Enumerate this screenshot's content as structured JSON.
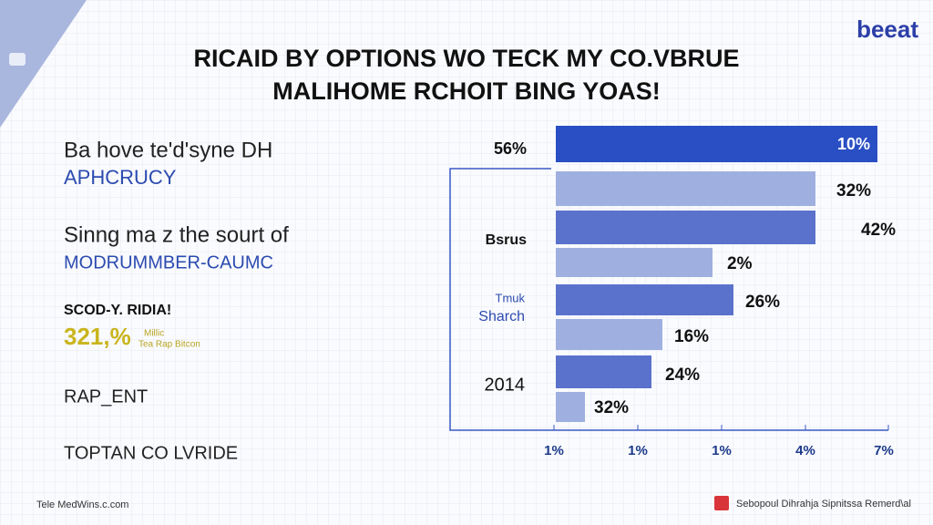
{
  "header": {
    "logo": "beeat",
    "title_lines": [
      "RICAID BY OPTIONS WO TECK MY CO.VBRUE",
      "MALIHOME RCHOIT BING YOAS!"
    ]
  },
  "left_panel": {
    "block1": {
      "line": "Ba hove te'd'syne DH",
      "highlight": "APHCRUCY"
    },
    "block2": {
      "line": "Sinng ma z the sourt of",
      "highlight": "MODRUMMBER-CAUMC"
    },
    "block3": {
      "heading": "SCOD-Y. RIDIA!",
      "stat": "321,%",
      "note_lines": [
        "Millic",
        "Tea Rap Bitcon"
      ]
    },
    "block4": "RAP_ENT",
    "block5": "TOPTAN CO LVRIDE"
  },
  "chart": {
    "row_labels": [
      "56%",
      "Bsrus",
      "Tmuk",
      "Sharch",
      "2014"
    ],
    "bar_labels": [
      "10%",
      "32%",
      "42%",
      "2%",
      "26%",
      "16%",
      "24%",
      "32%"
    ],
    "axis_labels": [
      "1%",
      "1%",
      "1%",
      "4%",
      "7%"
    ]
  },
  "footer": {
    "left": "Tele MedWins.c.com",
    "right": "Sebopoul Dihrahja Sipnitssa Remerd\\al"
  }
}
